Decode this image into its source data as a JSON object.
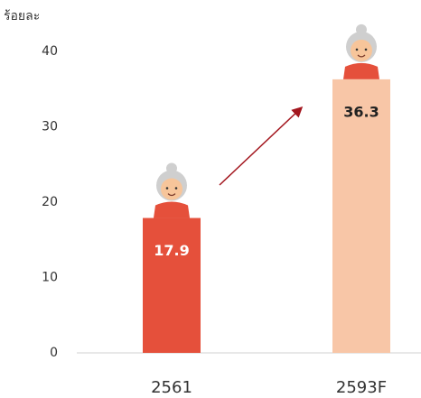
{
  "chart_data": {
    "type": "bar",
    "y_label": "ร้อยละ",
    "categories": [
      "2561",
      "2593F"
    ],
    "values": [
      17.9,
      36.3
    ],
    "colors": [
      "#e5503b",
      "#f8c6a7"
    ],
    "label_colors": [
      "#ffffff",
      "#222222"
    ],
    "ylim": [
      0,
      40
    ],
    "yticks": [
      0,
      10,
      20,
      30,
      40
    ],
    "grid": false
  }
}
